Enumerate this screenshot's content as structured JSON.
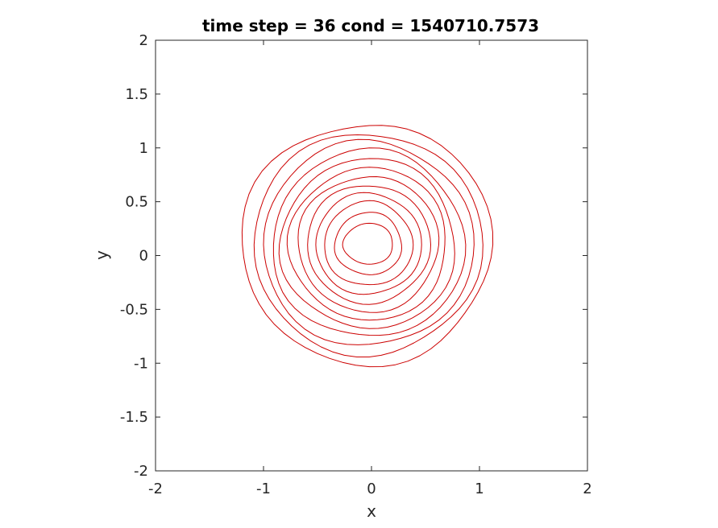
{
  "chart_data": {
    "type": "contour",
    "title": "time step = 36 cond = 1540710.7573",
    "xlabel": "x",
    "ylabel": "y",
    "xlim": [
      -2,
      2
    ],
    "ylim": [
      -2,
      2
    ],
    "xticks": [
      -2,
      -1,
      0,
      1,
      2
    ],
    "yticks": [
      -2,
      -1.5,
      -1,
      -0.5,
      0,
      0.5,
      1,
      1.5,
      2
    ],
    "xtick_labels": [
      "-2",
      "-1",
      "0",
      "1",
      "2"
    ],
    "ytick_labels": [
      "-2",
      "-1.5",
      "-1",
      "-0.5",
      "0",
      "0.5",
      "1",
      "1.5",
      "2"
    ],
    "grid": false,
    "line_color": "#cc0000",
    "center": [
      -0.02,
      0.1
    ],
    "contours": [
      {
        "rx_right": 1.13,
        "rx_left": 1.19,
        "ry_top": 1.13,
        "ry_bottom": 1.11
      },
      {
        "rx_right": 1.04,
        "rx_left": 1.08,
        "ry_top": 1.04,
        "ry_bottom": 1.02
      },
      {
        "rx_right": 0.96,
        "rx_left": 0.99,
        "ry_top": 0.96,
        "ry_bottom": 0.94
      },
      {
        "rx_right": 0.88,
        "rx_left": 0.9,
        "ry_top": 0.88,
        "ry_bottom": 0.86
      },
      {
        "rx_right": 0.8,
        "rx_left": 0.82,
        "ry_top": 0.8,
        "ry_bottom": 0.78
      },
      {
        "rx_right": 0.72,
        "rx_left": 0.74,
        "ry_top": 0.72,
        "ry_bottom": 0.7
      },
      {
        "rx_right": 0.64,
        "rx_left": 0.66,
        "ry_top": 0.64,
        "ry_bottom": 0.62
      },
      {
        "rx_right": 0.56,
        "rx_left": 0.58,
        "ry_top": 0.56,
        "ry_bottom": 0.54
      },
      {
        "rx_right": 0.48,
        "rx_left": 0.5,
        "ry_top": 0.48,
        "ry_bottom": 0.46
      },
      {
        "rx_right": 0.4,
        "rx_left": 0.42,
        "ry_top": 0.4,
        "ry_bottom": 0.38
      },
      {
        "rx_right": 0.3,
        "rx_left": 0.32,
        "ry_top": 0.3,
        "ry_bottom": 0.28
      },
      {
        "rx_right": 0.22,
        "rx_left": 0.24,
        "ry_top": 0.2,
        "ry_bottom": 0.18
      }
    ]
  }
}
